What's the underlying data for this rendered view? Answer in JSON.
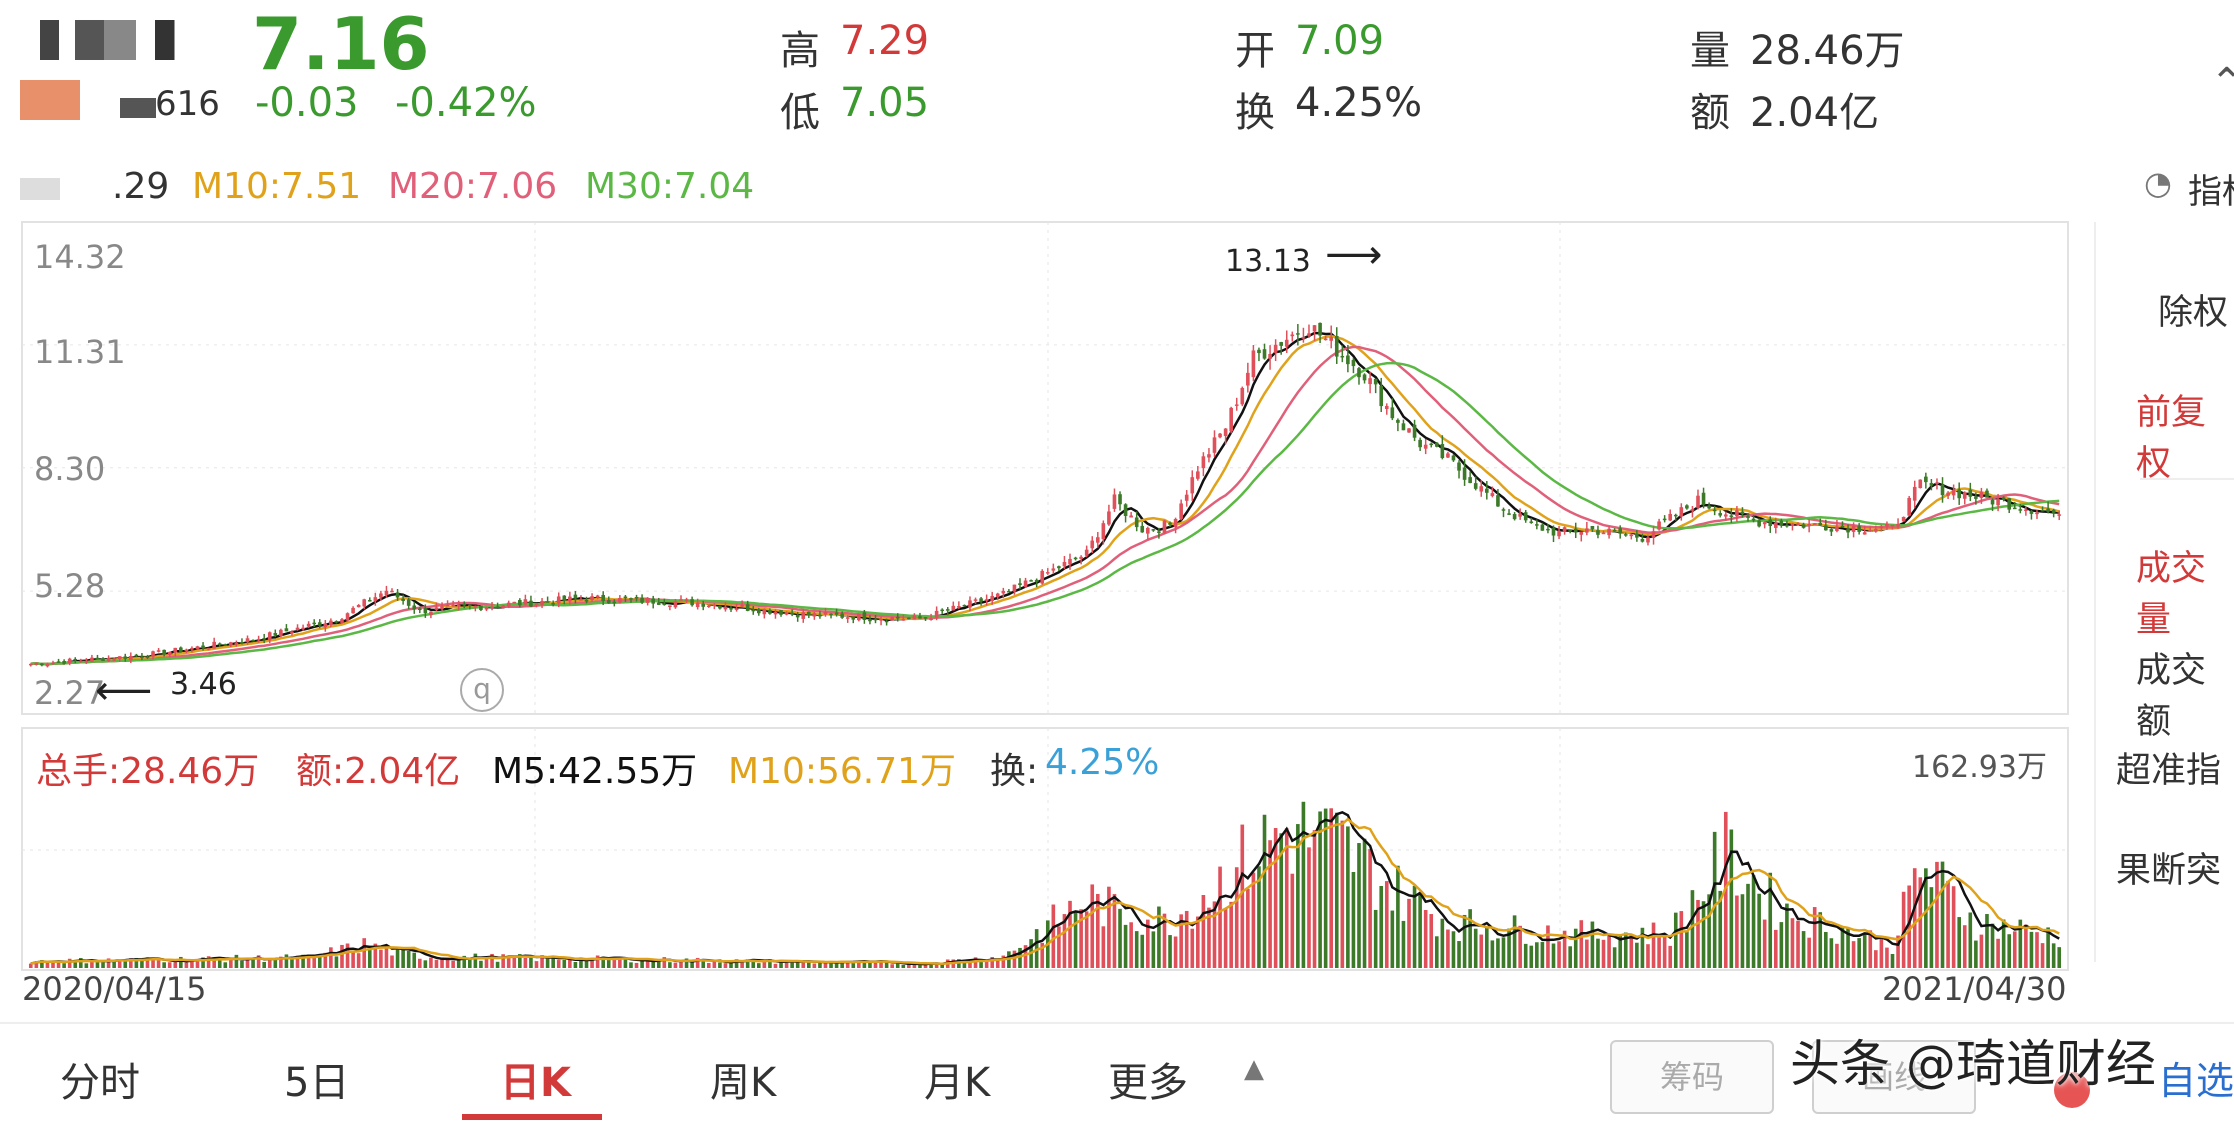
{
  "header": {
    "code_fragment": "616",
    "price": "7.16",
    "change": "-0.03",
    "change_pct": "-0.42%",
    "high_label": "高",
    "high_value": "7.29",
    "low_label": "低",
    "low_value": "7.05",
    "open_label": "开",
    "open_value": "7.09",
    "turnover_label": "换",
    "turnover_value": "4.25%",
    "volume_label": "量",
    "volume_value": "28.46万",
    "amount_label": "额",
    "amount_value": "2.04亿"
  },
  "ma_legend": {
    "m5_fragment": ".29",
    "m10": "M10:7.51",
    "m20": "M20:7.06",
    "m30": "M30:7.04",
    "indicator_label": "指标"
  },
  "volume_legend": {
    "total": "总手:28.46万",
    "amount": "额:2.04亿",
    "m5": "M5:42.55万",
    "m10": "M10:56.71万",
    "turnover_label": "换:",
    "turnover_value": "4.25%",
    "max_label": "162.93万"
  },
  "sidebar": {
    "items": [
      "除权",
      "前复权",
      "成交量",
      "成交额",
      "超准指",
      "果断突"
    ]
  },
  "tabs": [
    "分时",
    "5日",
    "日K",
    "周K",
    "月K",
    "更多"
  ],
  "buttons": {
    "chip": "筹码",
    "line": "画线",
    "self": "自选"
  },
  "watermark": "头条 @琦道财经",
  "colors": {
    "up": "#e0505a",
    "down": "#3c7a2a",
    "price_green": "#3a9a2e",
    "price_red": "#d23a3a",
    "m5": "#111111",
    "m10": "#e0a21a",
    "m20": "#e0607a",
    "m30": "#5cb845",
    "turnover": "#3aa0d8"
  },
  "chart_data": {
    "type": "candlestick",
    "date_range": [
      "2020/04/15",
      "2021/04/30"
    ],
    "y_ticks": [
      14.32,
      11.31,
      8.3,
      5.28,
      2.27
    ],
    "ylim": [
      2.27,
      14.32
    ],
    "annotations": [
      {
        "text": "13.13",
        "value": 13.13,
        "note": "period high"
      },
      {
        "text": "3.46",
        "value": 3.46,
        "note": "period low"
      }
    ],
    "close_path": {
      "idx": [
        0,
        20,
        40,
        55,
        64,
        70,
        80,
        100,
        120,
        140,
        160,
        175,
        190,
        195,
        200,
        205,
        210,
        215,
        220,
        230,
        240,
        245,
        250,
        255,
        260,
        265,
        270,
        275,
        280,
        290,
        300,
        305,
        310,
        320,
        335,
        340,
        350,
        360,
        365
      ],
      "values": [
        3.5,
        3.7,
        4.1,
        4.6,
        5.3,
        4.8,
        4.9,
        5.1,
        5.0,
        4.7,
        4.6,
        5.2,
        6.2,
        7.5,
        6.8,
        6.9,
        8.3,
        9.3,
        11.0,
        11.8,
        10.6,
        9.6,
        8.9,
        8.5,
        7.9,
        7.3,
        6.9,
        6.7,
        6.8,
        6.6,
        7.5,
        7.2,
        7.0,
        6.9,
        6.8,
        7.9,
        7.6,
        7.3,
        7.16
      ]
    },
    "volume": {
      "max_label": "162.93万",
      "idx": [
        0,
        50,
        60,
        70,
        100,
        130,
        160,
        175,
        190,
        195,
        205,
        215,
        225,
        235,
        245,
        255,
        275,
        295,
        305,
        315,
        335,
        340,
        350,
        365
      ],
      "values": [
        6,
        9,
        20,
        10,
        8,
        6,
        4,
        10,
        60,
        50,
        40,
        80,
        120,
        110,
        70,
        40,
        30,
        30,
        100,
        50,
        20,
        90,
        40,
        28
      ]
    },
    "ma_periods": [
      5,
      10,
      20,
      30
    ]
  }
}
